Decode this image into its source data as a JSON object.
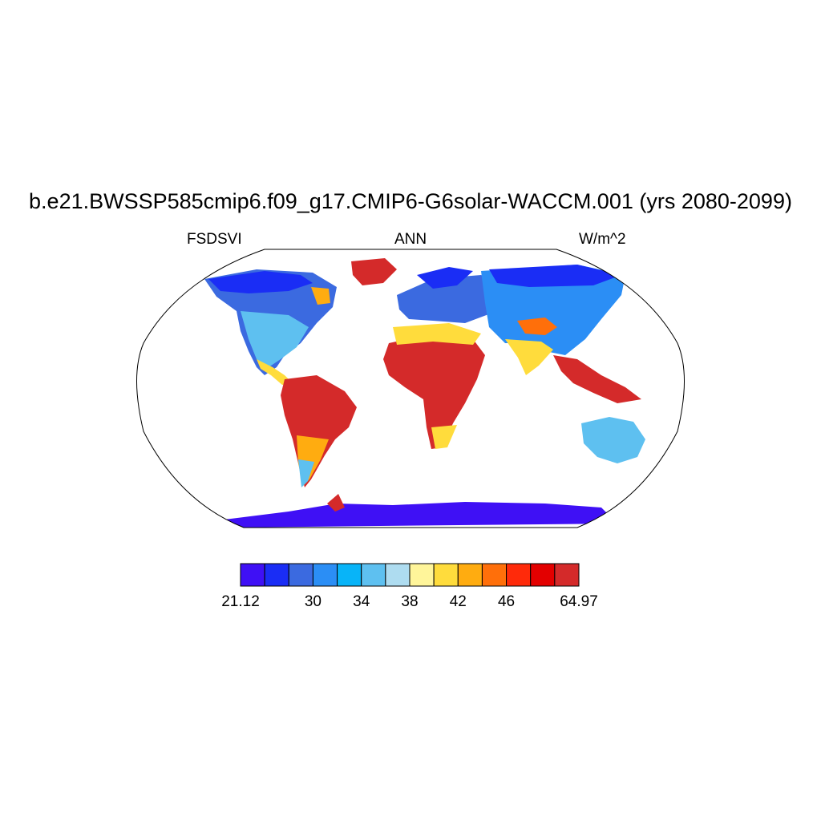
{
  "title": "b.e21.BWSSP585cmip6.f09_g17.CMIP6-G6solar-WACCM.001 (yrs 2080-2099)",
  "subtitle_left": "FSDSVI",
  "subtitle_center": "ANN",
  "subtitle_right": "W/m^2",
  "colorbar": {
    "colors": [
      "#3f10f5",
      "#1a2df5",
      "#3b6ae0",
      "#2b8ef5",
      "#08b4f8",
      "#5ec0f0",
      "#aedcf0",
      "#fff59a",
      "#ffdc3c",
      "#ffac10",
      "#ff6f0a",
      "#ff2a0a",
      "#e30000",
      "#d42a2a"
    ],
    "tick_labels": [
      "21.12",
      "30",
      "34",
      "38",
      "42",
      "46",
      "64.97"
    ]
  },
  "map": {
    "ocean_color": "#ffffff",
    "outline_color": "#000000"
  }
}
